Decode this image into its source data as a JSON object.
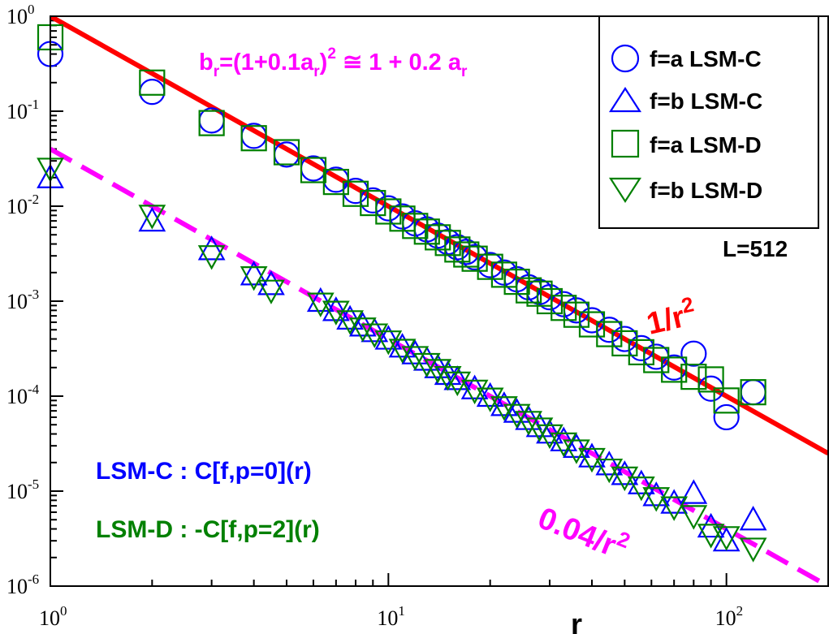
{
  "chart_data": {
    "type": "scatter",
    "xscale": "log",
    "yscale": "log",
    "xlim": [
      1,
      200
    ],
    "ylim": [
      1e-06,
      1
    ],
    "xlabel": "r",
    "ylabel": "",
    "xticks": [
      {
        "value": 1,
        "base": "10",
        "exp": "0"
      },
      {
        "value": 10,
        "base": "10",
        "exp": "1"
      },
      {
        "value": 100,
        "base": "10",
        "exp": "2"
      }
    ],
    "yticks": [
      {
        "value": 1,
        "base": "10",
        "exp": "0"
      },
      {
        "value": 0.1,
        "base": "10",
        "exp": "-1"
      },
      {
        "value": 0.01,
        "base": "10",
        "exp": "-2"
      },
      {
        "value": 0.001,
        "base": "10",
        "exp": "-3"
      },
      {
        "value": 0.0001,
        "base": "10",
        "exp": "-4"
      },
      {
        "value": 1e-05,
        "base": "10",
        "exp": "-5"
      },
      {
        "value": 1e-06,
        "base": "10",
        "exp": "-6"
      }
    ],
    "fit_lines": [
      {
        "name": "1/r^2",
        "coef": 1.0,
        "power": -2,
        "color": "#ff0000",
        "style": "solid",
        "x_range": [
          1,
          200
        ]
      },
      {
        "name": "0.04/r^2",
        "coef": 0.04,
        "power": -2,
        "color": "#ff00ff",
        "style": "dashed",
        "x_range": [
          1,
          200
        ]
      }
    ],
    "series": [
      {
        "name": "f=a LSM-C",
        "marker": "circle",
        "color": "#0000ff",
        "x": [
          1,
          2,
          3,
          4,
          5,
          6,
          7,
          8,
          9,
          10,
          11,
          12,
          13,
          14,
          15,
          16,
          17,
          18,
          20,
          22,
          24,
          26,
          28,
          30,
          33,
          36,
          40,
          45,
          50,
          56,
          62,
          70,
          80,
          90,
          100,
          120
        ],
        "y": [
          0.4,
          0.16,
          0.08,
          0.055,
          0.035,
          0.025,
          0.019,
          0.0145,
          0.0115,
          0.0095,
          0.0078,
          0.0066,
          0.0057,
          0.0049,
          0.0042,
          0.0037,
          0.0033,
          0.0029,
          0.0024,
          0.002,
          0.0017,
          0.0014,
          0.00125,
          0.0011,
          0.00093,
          0.0008,
          0.00063,
          0.0005,
          0.0004,
          0.00032,
          0.00026,
          0.0002,
          0.00028,
          0.00012,
          6e-05,
          0.00011
        ]
      },
      {
        "name": "f=b LSM-C",
        "marker": "triangle-up",
        "color": "#0000ff",
        "x": [
          1,
          2,
          3,
          4,
          4.5,
          6.3,
          7,
          7.7,
          8.4,
          9.1,
          10,
          11,
          12,
          13,
          14,
          15,
          16,
          18,
          20,
          22,
          24,
          26,
          28,
          30,
          33,
          36,
          40,
          45,
          50,
          56,
          62,
          70,
          80,
          90,
          100,
          120
        ],
        "y": [
          0.02,
          0.007,
          0.0035,
          0.0019,
          0.0015,
          0.001,
          0.0008,
          0.00065,
          0.00055,
          0.00048,
          0.0004,
          0.00033,
          0.00028,
          0.00024,
          0.0002,
          0.00017,
          0.00015,
          0.00012,
          0.0001,
          8e-05,
          6.8e-05,
          5.7e-05,
          4.8e-05,
          4.1e-05,
          3.4e-05,
          2.9e-05,
          2.3e-05,
          1.9e-05,
          1.5e-05,
          1.2e-05,
          9e-06,
          7.5e-06,
          9.5e-06,
          4.2e-06,
          3e-06,
          5e-06
        ]
      },
      {
        "name": "f=a LSM-D",
        "marker": "square",
        "color": "#008000",
        "x": [
          1,
          2,
          3,
          4,
          5,
          6,
          7,
          8,
          9,
          10,
          11,
          12,
          13,
          14,
          15,
          16,
          17,
          18,
          20,
          22,
          24,
          26,
          28,
          30,
          33,
          36,
          40,
          45,
          50,
          56,
          62,
          70,
          80,
          90,
          100,
          120
        ],
        "y": [
          0.6,
          0.2,
          0.075,
          0.052,
          0.037,
          0.024,
          0.018,
          0.0135,
          0.0108,
          0.0088,
          0.0074,
          0.0062,
          0.0054,
          0.0047,
          0.0041,
          0.0035,
          0.0031,
          0.0028,
          0.0023,
          0.0019,
          0.0016,
          0.0013,
          0.0012,
          0.001,
          0.00085,
          0.00072,
          0.00057,
          0.00045,
          0.00036,
          0.00029,
          0.00024,
          0.00019,
          0.00016,
          0.00015,
          9e-05,
          0.00011
        ]
      },
      {
        "name": "f=b LSM-D",
        "marker": "triangle-down",
        "color": "#008000",
        "x": [
          1,
          2,
          3,
          4,
          4.5,
          6.3,
          7,
          7.7,
          8.4,
          9.1,
          10,
          11,
          12,
          13,
          14,
          15,
          16,
          18,
          20,
          22,
          24,
          26,
          28,
          30,
          33,
          36,
          40,
          45,
          50,
          56,
          62,
          70,
          80,
          90,
          100,
          120
        ],
        "y": [
          0.025,
          0.008,
          0.003,
          0.0018,
          0.0013,
          0.00095,
          0.00078,
          0.00062,
          0.00052,
          0.00045,
          0.00038,
          0.00031,
          0.00026,
          0.00022,
          0.00019,
          0.00016,
          0.00014,
          0.000115,
          9.5e-05,
          7.7e-05,
          6.4e-05,
          5.4e-05,
          4.6e-05,
          3.9e-05,
          3.2e-05,
          2.7e-05,
          2.2e-05,
          1.7e-05,
          1.4e-05,
          1.1e-05,
          8.5e-06,
          6.8e-06,
          5.5e-06,
          3.5e-06,
          3.3e-06,
          2.5e-06
        ]
      }
    ],
    "legend": {
      "position": "top-right",
      "entries": [
        "f=a LSM-C",
        "f=b LSM-C",
        "f=a LSM-D",
        "f=b LSM-D"
      ]
    },
    "annotations": {
      "relation": {
        "b": "b",
        "b_sub": "r",
        "mid": "=(1+0.1a",
        "a_sub": "r",
        "close": ")",
        "sq": "2",
        "approx": " ≅ 1 + 0.2 a",
        "end_sub": "r"
      },
      "system_size": "L=512",
      "fit_red": {
        "text": "1/r",
        "sup": "2"
      },
      "fit_magenta": {
        "text": "0.04/r",
        "sup": "2"
      },
      "def_c": "LSM-C : C[f,p=0](r)",
      "def_d": "LSM-D : -C[f,p=2](r)"
    },
    "colors": {
      "blue": "#0000ff",
      "green": "#008000",
      "red": "#ff0000",
      "magenta": "#ff00ff"
    }
  }
}
